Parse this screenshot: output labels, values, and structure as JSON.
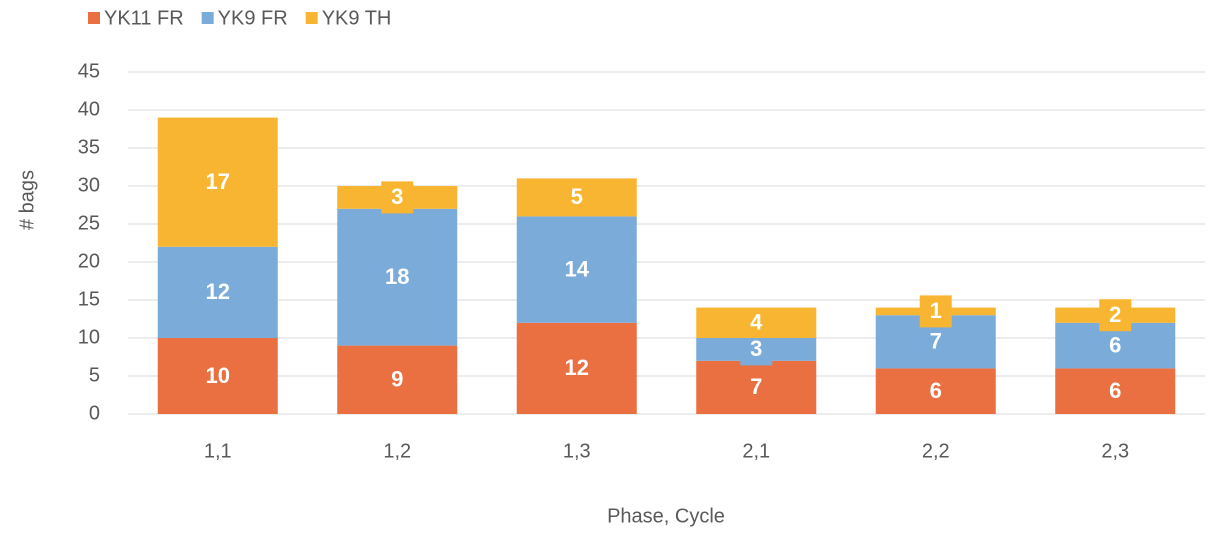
{
  "chart_data": {
    "type": "stacked_bar",
    "categories": [
      "1,1",
      "1,2",
      "1,3",
      "2,1",
      "2,2",
      "2,3"
    ],
    "series": [
      {
        "name": "YK11 FR",
        "color": "#ea6f41",
        "values": [
          10,
          9,
          12,
          7,
          6,
          6
        ]
      },
      {
        "name": "YK9 FR",
        "color": "#7aabd9",
        "values": [
          12,
          18,
          14,
          3,
          7,
          6
        ]
      },
      {
        "name": "YK9 TH",
        "color": "#f8b531",
        "values": [
          17,
          3,
          5,
          4,
          1,
          2
        ]
      }
    ],
    "ylim": [
      0,
      45
    ],
    "yticks": [
      0,
      5,
      10,
      15,
      20,
      25,
      30,
      35,
      40,
      45
    ],
    "ylabel": "# bags",
    "xlabel": "Phase, Cycle",
    "grid": true,
    "legend": "top-left"
  }
}
